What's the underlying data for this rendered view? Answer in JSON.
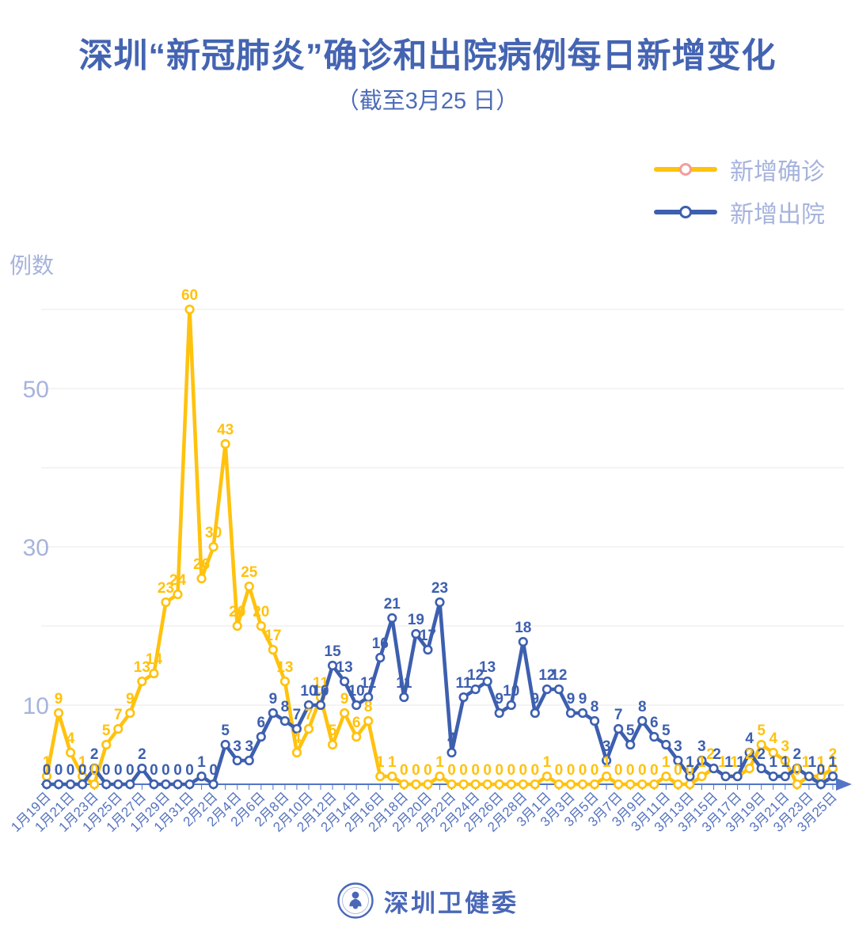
{
  "chart_data": {
    "type": "line",
    "title": "深圳“新冠肺炎”确诊和出院病例每日新增变化",
    "subtitle": "（截至3月25 日）",
    "ylabel": "例数",
    "ylim": [
      0,
      60
    ],
    "grid_step": 10,
    "y_labeled_ticks": [
      10,
      30,
      50
    ],
    "x_tick_every": 2,
    "categories": [
      "1月19日",
      "1月20日",
      "1月21日",
      "1月22日",
      "1月23日",
      "1月24日",
      "1月25日",
      "1月26日",
      "1月27日",
      "1月28日",
      "1月29日",
      "1月30日",
      "1月31日",
      "2月1日",
      "2月2日",
      "2月3日",
      "2月4日",
      "2月5日",
      "2月6日",
      "2月7日",
      "2月8日",
      "2月9日",
      "2月10日",
      "2月11日",
      "2月12日",
      "2月13日",
      "2月14日",
      "2月15日",
      "2月16日",
      "2月17日",
      "2月18日",
      "2月19日",
      "2月20日",
      "2月21日",
      "2月22日",
      "2月23日",
      "2月24日",
      "2月25日",
      "2月26日",
      "2月27日",
      "2月28日",
      "2月29日",
      "3月1日",
      "3月2日",
      "3月3日",
      "3月4日",
      "3月5日",
      "3月6日",
      "3月7日",
      "3月8日",
      "3月9日",
      "3月10日",
      "3月11日",
      "3月12日",
      "3月13日",
      "3月14日",
      "3月15日",
      "3月16日",
      "3月17日",
      "3月18日",
      "3月19日",
      "3月20日",
      "3月21日",
      "3月22日",
      "3月23日",
      "3月24日",
      "3月25日"
    ],
    "series": [
      {
        "name": "新增确诊",
        "color": "#FFC20E",
        "legend_marker_stroke": "#F49C9C",
        "values": [
          1,
          9,
          4,
          1,
          0,
          5,
          7,
          9,
          13,
          14,
          23,
          24,
          60,
          26,
          30,
          43,
          20,
          25,
          20,
          17,
          13,
          4,
          7,
          11,
          5,
          9,
          6,
          8,
          1,
          1,
          0,
          0,
          0,
          1,
          0,
          0,
          0,
          0,
          0,
          0,
          0,
          0,
          1,
          0,
          0,
          0,
          0,
          1,
          0,
          0,
          0,
          0,
          1,
          0,
          0,
          1,
          2,
          1,
          1,
          2,
          5,
          4,
          3,
          0,
          1,
          1,
          2
        ]
      },
      {
        "name": "新增出院",
        "color": "#3D5FAF",
        "legend_marker_stroke": "#3D5FAF",
        "values": [
          0,
          0,
          0,
          0,
          2,
          0,
          0,
          0,
          2,
          0,
          0,
          0,
          0,
          1,
          0,
          5,
          3,
          3,
          6,
          9,
          8,
          7,
          10,
          10,
          15,
          13,
          10,
          11,
          16,
          21,
          11,
          19,
          17,
          23,
          4,
          11,
          12,
          13,
          9,
          10,
          18,
          9,
          12,
          12,
          9,
          9,
          8,
          3,
          7,
          5,
          8,
          6,
          5,
          3,
          1,
          3,
          2,
          1,
          1,
          4,
          2,
          1,
          1,
          2,
          1,
          0,
          1
        ]
      }
    ],
    "legend_position": "top-right",
    "grid": "horizontal-only"
  },
  "footer": {
    "brand": "深圳卫健委"
  }
}
